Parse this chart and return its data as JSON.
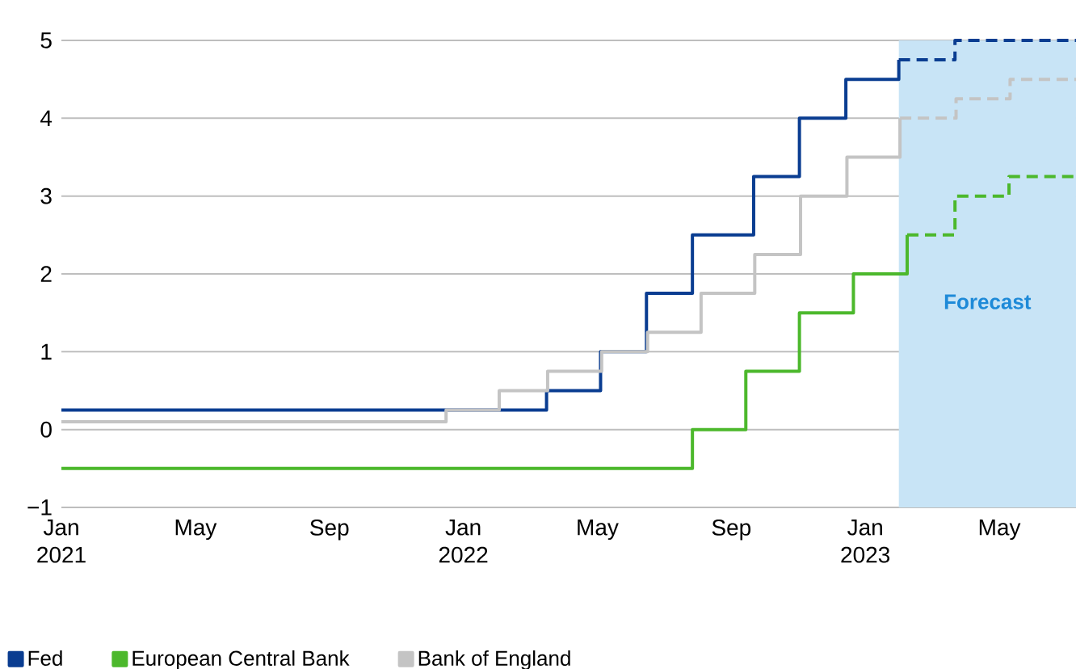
{
  "chart_data": {
    "type": "step",
    "xlim": [
      "2021-01-01",
      "2023-07-10"
    ],
    "ylim": [
      -1,
      5
    ],
    "xticks": [
      {
        "value": "2021-01-01",
        "label": "Jan 2021"
      },
      {
        "value": "2021-05-01",
        "label": "May"
      },
      {
        "value": "2021-09-01",
        "label": "Sep"
      },
      {
        "value": "2022-01-01",
        "label": "Jan 2022"
      },
      {
        "value": "2022-05-01",
        "label": "May"
      },
      {
        "value": "2022-09-01",
        "label": "Sep"
      },
      {
        "value": "2023-01-01",
        "label": "Jan 2023"
      },
      {
        "value": "2023-05-01",
        "label": "May"
      }
    ],
    "yticks": [
      {
        "value": -1,
        "label": "−1"
      },
      0,
      1,
      2,
      3,
      4,
      5
    ],
    "grid": "y",
    "legend": "bottom",
    "bands": [
      {
        "axis": "x",
        "from": "2023-02-01",
        "to": "2023-07-10",
        "label": "Forecast",
        "color": "#c8e4f6"
      }
    ],
    "series": [
      {
        "name": "Fed",
        "color": "#0a3d91",
        "x": [
          "2021-01-01",
          "2022-03-16",
          "2022-05-04",
          "2022-06-15",
          "2022-07-27",
          "2022-09-21",
          "2022-11-02",
          "2022-12-14",
          "2023-02-01"
        ],
        "values": [
          0.25,
          0.5,
          1.0,
          1.75,
          2.5,
          3.25,
          4.0,
          4.5,
          4.75
        ]
      },
      {
        "name": "European Central Bank",
        "color": "#4cb82c",
        "x": [
          "2021-01-01",
          "2022-07-27",
          "2022-09-14",
          "2022-11-02",
          "2022-12-21",
          "2023-02-08"
        ],
        "values": [
          -0.5,
          0.0,
          0.75,
          1.5,
          2.0,
          2.5
        ]
      },
      {
        "name": "Bank of England",
        "color": "#c4c4c4",
        "x": [
          "2021-01-01",
          "2021-12-16",
          "2022-02-03",
          "2022-03-17",
          "2022-05-05",
          "2022-06-16",
          "2022-08-04",
          "2022-09-22",
          "2022-11-03",
          "2022-12-15",
          "2023-02-02"
        ],
        "values": [
          0.1,
          0.25,
          0.5,
          0.75,
          1.0,
          1.25,
          1.75,
          2.25,
          3.0,
          3.5,
          4.0
        ]
      },
      {
        "color": "#0a3d91",
        "line_style": "dashed",
        "x": [
          "2023-02-01",
          "2023-03-22",
          "2023-07-10"
        ],
        "values": [
          4.75,
          5.0,
          5.0
        ]
      },
      {
        "color": "#4cb82c",
        "line_style": "dashed",
        "x": [
          "2023-02-08",
          "2023-03-22",
          "2023-05-10",
          "2023-07-10"
        ],
        "values": [
          2.5,
          3.0,
          3.25,
          3.25
        ]
      },
      {
        "color": "#c4c4c4",
        "line_style": "dashed",
        "x": [
          "2023-02-02",
          "2023-03-23",
          "2023-05-11",
          "2023-07-10"
        ],
        "values": [
          4.0,
          4.25,
          4.5,
          4.5
        ]
      }
    ]
  }
}
